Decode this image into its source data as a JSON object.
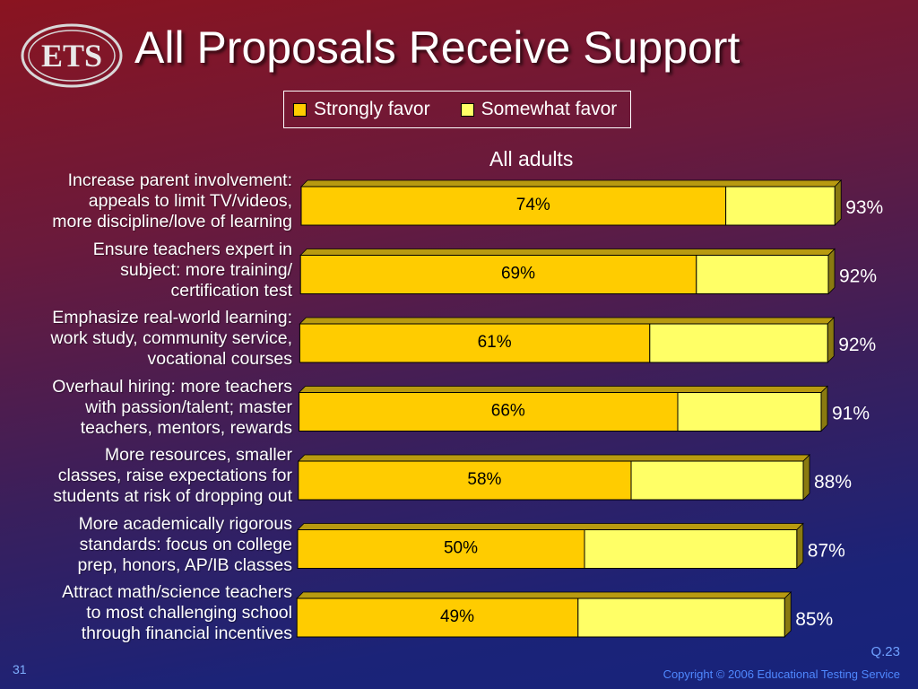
{
  "header": {
    "logo_text": "ETS",
    "title": "All Proposals Receive Support"
  },
  "legend": {
    "strong": "Strongly favor",
    "somewhat": "Somewhat favor"
  },
  "subtitle": "All adults",
  "colors": {
    "strong": "#ffcc00",
    "somewhat": "#ffff66",
    "bar_edge": "#8a7a10"
  },
  "chart_data": {
    "type": "bar",
    "orientation": "horizontal",
    "stacked": true,
    "title": "All adults",
    "categories": [
      "Increase parent involvement:\nappeals to limit TV/videos,\nmore discipline/love of learning",
      "Ensure teachers expert in\nsubject: more training/\ncertification test",
      "Emphasize real-world learning:\nwork study, community service,\nvocational courses",
      "Overhaul hiring: more teachers\nwith passion/talent; master\nteachers, mentors, rewards",
      "More resources, smaller\nclasses, raise expectations for\nstudents at risk of dropping out",
      "More academically rigorous\nstandards: focus on college\nprep, honors, AP/IB classes",
      "Attract math/science teachers\nto most challenging school\nthrough financial incentives"
    ],
    "series": [
      {
        "name": "Strongly favor",
        "values": [
          74,
          69,
          61,
          66,
          58,
          50,
          49
        ]
      },
      {
        "name": "Somewhat favor",
        "values": [
          19,
          23,
          31,
          25,
          30,
          37,
          36
        ]
      }
    ],
    "strong_labels": [
      "74%",
      "69%",
      "61%",
      "66%",
      "58%",
      "50%",
      "49%"
    ],
    "total_labels": [
      "93%",
      "92%",
      "92%",
      "91%",
      "88%",
      "87%",
      "85%"
    ],
    "xlim": [
      0,
      100
    ]
  },
  "footer": {
    "question": "Q.23",
    "page": "31",
    "copyright": "Copyright © 2006 Educational Testing Service"
  }
}
